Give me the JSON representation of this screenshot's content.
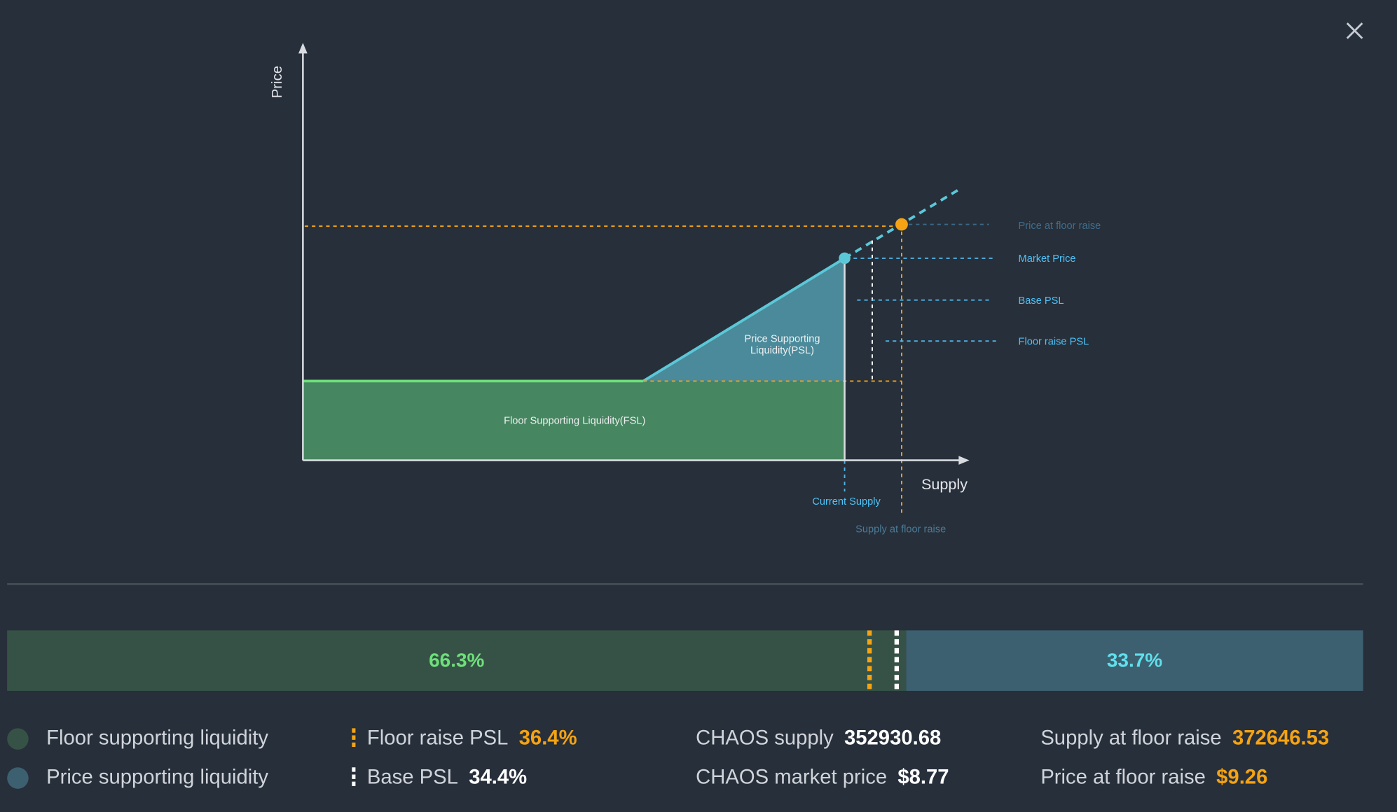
{
  "diagram": {
    "y_axis_label": "Price",
    "x_axis_label": "Supply",
    "fsl_label": "Floor Supporting Liquidity(FSL)",
    "psl_label": [
      "Price Supporting",
      "Liquidity(PSL)"
    ],
    "guides": [
      "Price at floor raise",
      "Market Price",
      "Base PSL",
      "Floor raise PSL"
    ],
    "current_supply": "Current Supply",
    "supply_at_floor_raise": "Supply at floor raise"
  },
  "liquidity_bar": {
    "segments": [
      {
        "name": "Floor supporting liquidity",
        "value": 66.3,
        "label": "66.3%",
        "color": "#365246",
        "text_color": "#6ee07a"
      },
      {
        "name": "Price supporting liquidity",
        "value": 33.7,
        "label": "33.7%",
        "color": "#3d6070",
        "text_color": "#5fe0ec"
      }
    ]
  },
  "markers": [
    {
      "name": "Floor raise PSL",
      "value": 36.4,
      "label": "36.4%",
      "color": "#f5a313"
    },
    {
      "name": "Base PSL",
      "value": 34.4,
      "label": "34.4%",
      "color": "#ffffff"
    }
  ],
  "stats": [
    {
      "name": "CHAOS supply",
      "value": "352930.68",
      "color": "#ffffff"
    },
    {
      "name": "Supply at floor raise",
      "value": "372646.53",
      "color": "#f5a313"
    },
    {
      "name": "CHAOS market price",
      "value": "$8.77",
      "color": "#ffffff"
    },
    {
      "name": "Price at floor raise",
      "value": "$9.26",
      "color": "#f5a313"
    }
  ]
}
